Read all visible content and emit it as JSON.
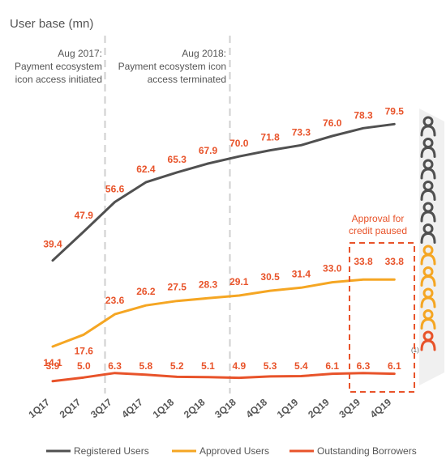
{
  "chart_data": {
    "type": "line",
    "title": "User base (mn)",
    "categories": [
      "1Q17",
      "2Q17",
      "3Q17",
      "4Q17",
      "1Q18",
      "2Q18",
      "3Q18",
      "4Q18",
      "1Q19",
      "2Q19",
      "3Q19",
      "4Q19"
    ],
    "series": [
      {
        "name": "Registered Users",
        "color": "#505050",
        "values": [
          39.4,
          47.9,
          56.6,
          62.4,
          65.3,
          67.9,
          70.0,
          71.8,
          73.3,
          76.0,
          78.3,
          79.5
        ],
        "labels": [
          "39.4",
          "47.9",
          "56.6",
          "62.4",
          "65.3",
          "67.9",
          "70.0",
          "71.8",
          "73.3",
          "76.0",
          "78.3",
          "79.5"
        ]
      },
      {
        "name": "Approved Users",
        "color": "#f5a623",
        "values": [
          14.1,
          17.6,
          23.6,
          26.2,
          27.5,
          28.3,
          29.1,
          30.5,
          31.4,
          33.0,
          33.8,
          33.8
        ],
        "labels": [
          "14.1",
          "17.6",
          "23.6",
          "26.2",
          "27.5",
          "28.3",
          "29.1",
          "30.5",
          "31.4",
          "33.0",
          "33.8",
          "33.8"
        ]
      },
      {
        "name": "Outstanding Borrowers",
        "color": "#e8532a",
        "values": [
          3.9,
          5.0,
          6.3,
          5.8,
          5.2,
          5.1,
          4.9,
          5.3,
          5.4,
          6.1,
          6.3,
          6.1
        ],
        "labels": [
          "3.9",
          "5.0",
          "6.3",
          "5.8",
          "5.2",
          "5.1",
          "4.9",
          "5.3",
          "5.4",
          "6.1",
          "6.3",
          "6.1"
        ]
      }
    ],
    "label_color": "#e8532a",
    "footnote_marker": "(1)",
    "annotations": [
      {
        "lines": [
          "Aug 2017:",
          "Payment ecosystem",
          "icon access initiated"
        ]
      },
      {
        "lines": [
          "Aug 2018:",
          "Payment ecosystem icon",
          "access terminated"
        ]
      },
      {
        "lines": [
          "Approval for",
          "credit paused"
        ]
      }
    ],
    "legend_position": "bottom",
    "grid": false,
    "icons": {
      "name": "person-icon",
      "colors": [
        "#505050",
        "#505050",
        "#505050",
        "#505050",
        "#505050",
        "#505050",
        "#f5a623",
        "#f5a623",
        "#f5a623",
        "#f5a623",
        "#e8532a"
      ]
    }
  }
}
